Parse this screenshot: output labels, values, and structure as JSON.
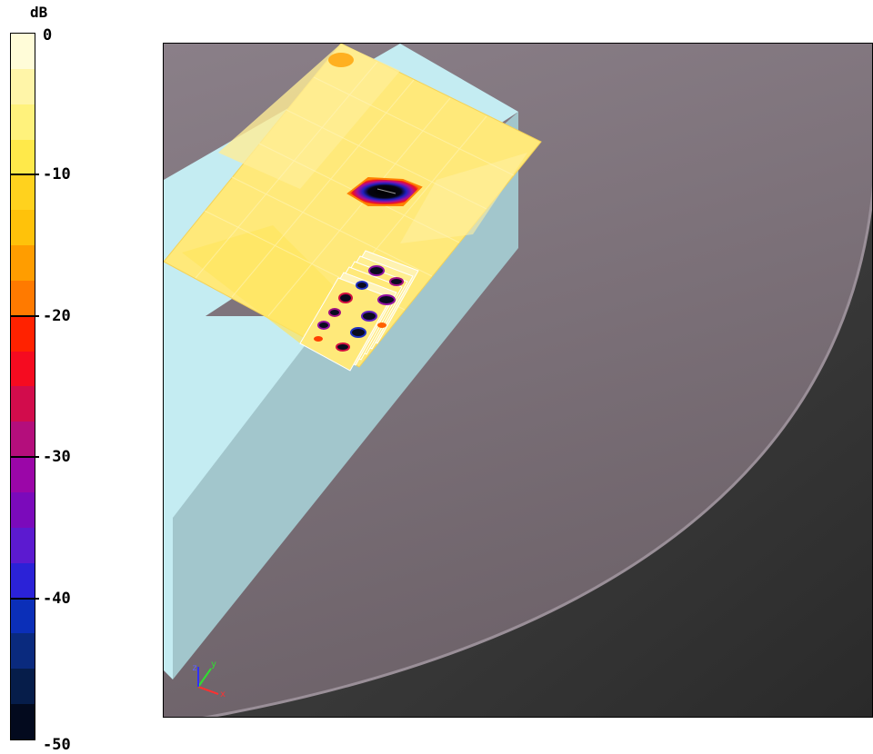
{
  "legend": {
    "unit": "dB",
    "ticks": [
      {
        "label": "0",
        "value": 0
      },
      {
        "label": "-10",
        "value": -10
      },
      {
        "label": "-20",
        "value": -20
      },
      {
        "label": "-30",
        "value": -30
      },
      {
        "label": "-40",
        "value": -40
      },
      {
        "label": "-50",
        "value": -50
      }
    ],
    "range": [
      -50,
      0
    ],
    "bands": [
      "#fffcd8",
      "#fff5a8",
      "#fff27c",
      "#ffe94a",
      "#ffd21e",
      "#ffc20a",
      "#ff9d00",
      "#ff7a00",
      "#ff2200",
      "#f50b20",
      "#d20c4c",
      "#b40e7c",
      "#9b06a8",
      "#7b0abb",
      "#5c1ad0",
      "#2b22d7",
      "#0b2fb8",
      "#0a2a7e",
      "#061d4a",
      "#030a1e"
    ]
  },
  "axes_indicator": {
    "x": "x",
    "y": "y",
    "z": "z"
  },
  "colors": {
    "background": "#7a6f78",
    "block": "#a9cfd6",
    "block_top": "#c4ecf2",
    "plane": "#ffe97a"
  }
}
